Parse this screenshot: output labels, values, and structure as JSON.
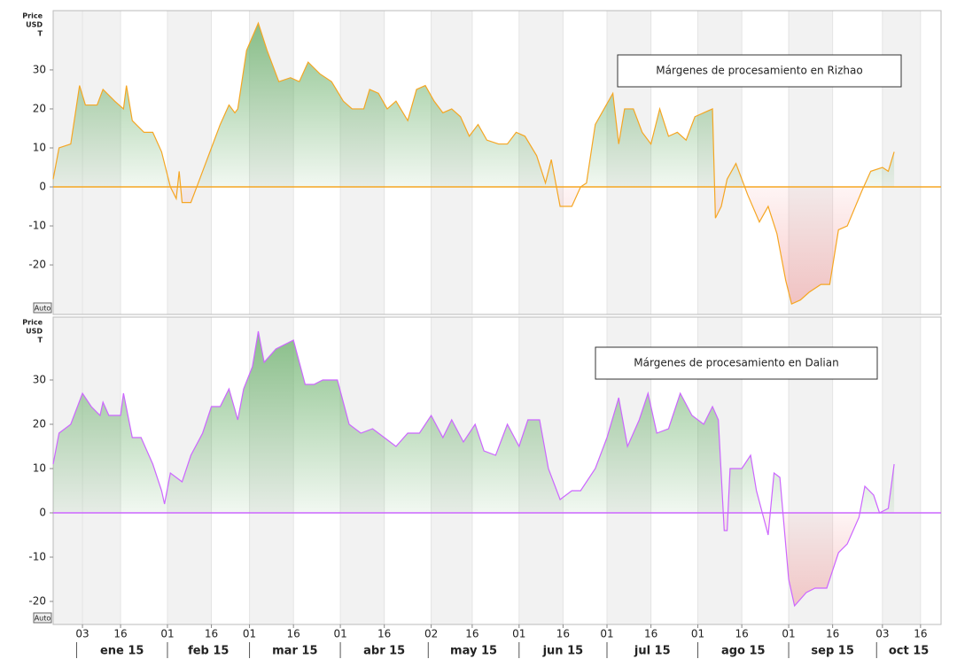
{
  "chart_data": [
    {
      "type": "area",
      "title": "Márgenes de procesamiento en Rizhao",
      "ylabel": [
        "Price",
        "USD",
        "T"
      ],
      "auto_button": "Auto",
      "series": [
        {
          "color": "#f5a623",
          "x": [
            "2014-12-24",
            "2014-12-26",
            "2014-12-30",
            "2015-01-02",
            "2015-01-04",
            "2015-01-08",
            "2015-01-10",
            "2015-01-14",
            "2015-01-17",
            "2015-01-18",
            "2015-01-20",
            "2015-01-24",
            "2015-01-27",
            "2015-01-30",
            "2015-02-02",
            "2015-02-04",
            "2015-02-05",
            "2015-02-06",
            "2015-02-09",
            "2015-02-13",
            "2015-02-16",
            "2015-02-19",
            "2015-02-22",
            "2015-02-24",
            "2015-02-25",
            "2015-02-28",
            "2015-03-04",
            "2015-03-07",
            "2015-03-11",
            "2015-03-15",
            "2015-03-18",
            "2015-03-21",
            "2015-03-25",
            "2015-03-29",
            "2015-04-02",
            "2015-04-05",
            "2015-04-09",
            "2015-04-11",
            "2015-04-14",
            "2015-04-17",
            "2015-04-20",
            "2015-04-24",
            "2015-04-27",
            "2015-04-30",
            "2015-05-03",
            "2015-05-06",
            "2015-05-09",
            "2015-05-12",
            "2015-05-15",
            "2015-05-18",
            "2015-05-21",
            "2015-05-25",
            "2015-05-28",
            "2015-05-31",
            "2015-06-03",
            "2015-06-07",
            "2015-06-10",
            "2015-06-12",
            "2015-06-15",
            "2015-06-19",
            "2015-06-22",
            "2015-06-24",
            "2015-06-27",
            "2015-06-30",
            "2015-07-03",
            "2015-07-05",
            "2015-07-07",
            "2015-07-10",
            "2015-07-13",
            "2015-07-16",
            "2015-07-19",
            "2015-07-22",
            "2015-07-25",
            "2015-07-28",
            "2015-07-31",
            "2015-08-03",
            "2015-08-06",
            "2015-08-07",
            "2015-08-09",
            "2015-08-11",
            "2015-08-14",
            "2015-08-18",
            "2015-08-22",
            "2015-08-25",
            "2015-08-28",
            "2015-08-31",
            "2015-09-02",
            "2015-09-05",
            "2015-09-08",
            "2015-09-12",
            "2015-09-15",
            "2015-09-18",
            "2015-09-21",
            "2015-09-26",
            "2015-09-29",
            "2015-10-03",
            "2015-10-05",
            "2015-10-07"
          ],
          "values": [
            2,
            10,
            11,
            26,
            21,
            21,
            25,
            22,
            20,
            26,
            17,
            14,
            14,
            9,
            0,
            -3,
            4,
            -4,
            -4,
            4,
            10,
            16,
            21,
            19,
            20,
            35,
            42,
            35,
            27,
            28,
            27,
            32,
            29,
            27,
            22,
            20,
            20,
            25,
            24,
            20,
            22,
            17,
            25,
            26,
            22,
            19,
            20,
            18,
            13,
            16,
            12,
            11,
            11,
            14,
            13,
            8,
            1,
            7,
            -5,
            -5,
            0,
            1,
            16,
            20,
            24,
            11,
            20,
            20,
            14,
            11,
            20,
            13,
            14,
            12,
            18,
            19,
            20,
            -8,
            -5,
            2,
            6,
            -2,
            -9,
            -5,
            -12,
            -24,
            -30,
            -29,
            -27,
            -25,
            -25,
            -11,
            -10,
            -1,
            4,
            5,
            4,
            9
          ]
        }
      ],
      "xlim": [
        "2014-12-24",
        "2015-10-23"
      ],
      "ylim": [
        -32.7,
        45.2
      ],
      "yticks": [
        -20,
        -10,
        0,
        10,
        20,
        30
      ],
      "positive_color": "#5aa85a",
      "negative_color": "#f08080"
    },
    {
      "type": "area",
      "title": "Márgenes de procesamiento en Dalian",
      "ylabel": [
        "Price",
        "USD",
        "T"
      ],
      "auto_button": "Auto",
      "series": [
        {
          "color": "#cc66ff",
          "x": [
            "2014-12-24",
            "2014-12-26",
            "2014-12-30",
            "2015-01-03",
            "2015-01-06",
            "2015-01-09",
            "2015-01-10",
            "2015-01-12",
            "2015-01-16",
            "2015-01-17",
            "2015-01-20",
            "2015-01-23",
            "2015-01-27",
            "2015-01-30",
            "2015-01-31",
            "2015-02-02",
            "2015-02-06",
            "2015-02-09",
            "2015-02-13",
            "2015-02-16",
            "2015-02-19",
            "2015-02-22",
            "2015-02-25",
            "2015-02-27",
            "2015-03-02",
            "2015-03-04",
            "2015-03-06",
            "2015-03-10",
            "2015-03-16",
            "2015-03-20",
            "2015-03-23",
            "2015-03-26",
            "2015-03-31",
            "2015-04-04",
            "2015-04-08",
            "2015-04-12",
            "2015-04-16",
            "2015-04-20",
            "2015-04-24",
            "2015-04-28",
            "2015-05-02",
            "2015-05-06",
            "2015-05-09",
            "2015-05-13",
            "2015-05-17",
            "2015-05-20",
            "2015-05-24",
            "2015-05-28",
            "2015-06-01",
            "2015-06-04",
            "2015-06-08",
            "2015-06-11",
            "2015-06-15",
            "2015-06-19",
            "2015-06-22",
            "2015-06-27",
            "2015-07-01",
            "2015-07-05",
            "2015-07-08",
            "2015-07-12",
            "2015-07-15",
            "2015-07-18",
            "2015-07-22",
            "2015-07-26",
            "2015-07-30",
            "2015-08-03",
            "2015-08-06",
            "2015-08-08",
            "2015-08-10",
            "2015-08-11",
            "2015-08-12",
            "2015-08-16",
            "2015-08-19",
            "2015-08-21",
            "2015-08-25",
            "2015-08-27",
            "2015-08-29",
            "2015-09-01",
            "2015-09-03",
            "2015-09-07",
            "2015-09-10",
            "2015-09-14",
            "2015-09-18",
            "2015-09-21",
            "2015-09-25",
            "2015-09-27",
            "2015-09-30",
            "2015-10-02",
            "2015-10-05",
            "2015-10-07"
          ],
          "values": [
            11,
            18,
            20,
            27,
            24,
            22,
            25,
            22,
            22,
            27,
            17,
            17,
            11,
            5,
            2,
            9,
            7,
            13,
            18,
            24,
            24,
            28,
            21,
            28,
            33,
            41,
            34,
            37,
            39,
            29,
            29,
            30,
            30,
            20,
            18,
            19,
            17,
            15,
            18,
            18,
            22,
            17,
            21,
            16,
            20,
            14,
            13,
            20,
            15,
            21,
            21,
            10,
            3,
            5,
            5,
            10,
            17,
            26,
            15,
            21,
            27,
            18,
            19,
            27,
            22,
            20,
            24,
            21,
            -4,
            -4,
            10,
            10,
            13,
            5,
            -5,
            9,
            8,
            -15,
            -21,
            -18,
            -17,
            -17,
            -9,
            -7,
            -1,
            6,
            4,
            0,
            1,
            11
          ]
        }
      ],
      "xlim": [
        "2014-12-24",
        "2015-10-23"
      ],
      "ylim": [
        -25.2,
        44.2
      ],
      "yticks": [
        -20,
        -10,
        0,
        10,
        20,
        30
      ],
      "positive_color": "#5aa85a",
      "negative_color": "#f08080",
      "xticks": [
        {
          "value": "2015-01-03",
          "label": "03"
        },
        {
          "value": "2015-01-16",
          "label": "16"
        },
        {
          "value": "2015-02-01",
          "label": "01"
        },
        {
          "value": "2015-02-16",
          "label": "16"
        },
        {
          "value": "2015-03-01",
          "label": "01"
        },
        {
          "value": "2015-03-16",
          "label": "16"
        },
        {
          "value": "2015-04-01",
          "label": "01"
        },
        {
          "value": "2015-04-16",
          "label": "16"
        },
        {
          "value": "2015-05-02",
          "label": "02"
        },
        {
          "value": "2015-05-16",
          "label": "16"
        },
        {
          "value": "2015-06-01",
          "label": "01"
        },
        {
          "value": "2015-06-16",
          "label": "16"
        },
        {
          "value": "2015-07-01",
          "label": "01"
        },
        {
          "value": "2015-07-16",
          "label": "16"
        },
        {
          "value": "2015-08-01",
          "label": "01"
        },
        {
          "value": "2015-08-16",
          "label": "16"
        },
        {
          "value": "2015-09-01",
          "label": "01"
        },
        {
          "value": "2015-09-16",
          "label": "16"
        },
        {
          "value": "2015-10-03",
          "label": "03"
        },
        {
          "value": "2015-10-16",
          "label": "16"
        }
      ],
      "month_ticks": [
        {
          "value": "2015-01-01",
          "label": "ene 15"
        },
        {
          "value": "2015-02-01",
          "label": "feb 15"
        },
        {
          "value": "2015-03-01",
          "label": "mar 15"
        },
        {
          "value": "2015-04-01",
          "label": "abr 15"
        },
        {
          "value": "2015-05-01",
          "label": "may 15"
        },
        {
          "value": "2015-06-01",
          "label": "jun 15"
        },
        {
          "value": "2015-07-01",
          "label": "jul 15"
        },
        {
          "value": "2015-08-01",
          "label": "ago 15"
        },
        {
          "value": "2015-09-01",
          "label": "sep 15"
        },
        {
          "value": "2015-10-01",
          "label": "oct 15"
        }
      ]
    }
  ]
}
